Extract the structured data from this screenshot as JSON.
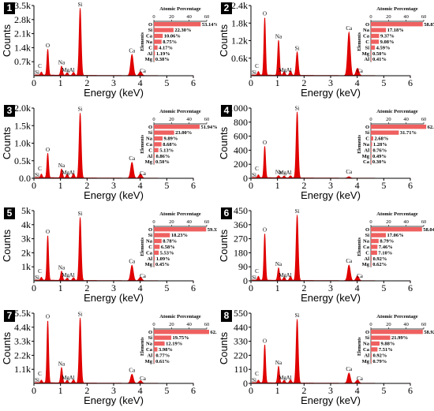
{
  "colors": {
    "spectrum": "#e00000",
    "bar": "#ef6060",
    "axis": "#000000"
  },
  "inset_title": "Atomic Percentage",
  "inset_ylabel": "Elements",
  "xlabel": "Energy (keV)",
  "ylabel": "Counts",
  "chart_data": [
    {
      "id": "1",
      "type": "line",
      "xlabel": "Energy (keV)",
      "ylabel": "Counts",
      "xlim": [
        0,
        6
      ],
      "ylim": [
        0,
        3500
      ],
      "xticks": [
        "0",
        "1",
        "2",
        "3",
        "4",
        "5",
        "6"
      ],
      "yticks": [
        "0.7k",
        "1.4k",
        "2.1k",
        "2.8k",
        "3.5k"
      ],
      "ytick_values": [
        700,
        1400,
        2100,
        2800,
        3500
      ],
      "peaks": [
        {
          "label": "C",
          "x": 0.28,
          "y": 150
        },
        {
          "label": "O",
          "x": 0.52,
          "y": 1300
        },
        {
          "label": "Na",
          "x": 1.04,
          "y": 450
        },
        {
          "label": "Mg",
          "x": 1.25,
          "y": 120
        },
        {
          "label": "Al",
          "x": 1.49,
          "y": 150
        },
        {
          "label": "Si",
          "x": 1.74,
          "y": 3350
        },
        {
          "label": "Ca",
          "x": 3.69,
          "y": 1050
        },
        {
          "label": "Ca",
          "x": 4.01,
          "y": 200
        }
      ],
      "extra_labels": [
        {
          "label": "Si",
          "x": 0.12
        }
      ],
      "inset": {
        "type": "bar",
        "title": "Atomic Percentage",
        "ylabel": "Elements",
        "xlim": [
          0,
          60
        ],
        "xticks": [
          "0",
          "20",
          "40",
          "60"
        ],
        "categories": [
          "O",
          "Si",
          "Ca",
          "Na",
          "C",
          "Al",
          "Mg"
        ],
        "values": [
          53.14,
          22.3,
          10.06,
          8.75,
          4.17,
          1.19,
          0.38
        ],
        "value_labels": [
          "53.14%",
          "22.30%",
          "10.06%",
          "8.75%",
          "4.17%",
          "1.19%",
          "0.38%"
        ]
      }
    },
    {
      "id": "2",
      "type": "line",
      "xlabel": "Energy (keV)",
      "ylabel": "Counts",
      "xlim": [
        0,
        6
      ],
      "ylim": [
        0,
        2400
      ],
      "xticks": [
        "0",
        "1",
        "2",
        "3",
        "4",
        "5",
        "6"
      ],
      "yticks": [
        "0.6k",
        "1.2k",
        "1.8k",
        "2.4k"
      ],
      "ytick_values": [
        600,
        1200,
        1800,
        2400
      ],
      "peaks": [
        {
          "label": "C",
          "x": 0.28,
          "y": 120
        },
        {
          "label": "O",
          "x": 0.52,
          "y": 1980
        },
        {
          "label": "Na",
          "x": 1.04,
          "y": 1200
        },
        {
          "label": "Mg",
          "x": 1.25,
          "y": 120
        },
        {
          "label": "Al",
          "x": 1.49,
          "y": 150
        },
        {
          "label": "Si",
          "x": 1.74,
          "y": 800
        },
        {
          "label": "Ca",
          "x": 3.69,
          "y": 1480
        },
        {
          "label": "Ca",
          "x": 4.01,
          "y": 250
        }
      ],
      "extra_labels": [
        {
          "label": "Si",
          "x": 0.12
        }
      ],
      "inset": {
        "type": "bar",
        "title": "Atomic Percentage",
        "ylabel": "Elements",
        "xlim": [
          0,
          60
        ],
        "xticks": [
          "0",
          "20",
          "40",
          "60"
        ],
        "categories": [
          "O",
          "Na",
          "Ca",
          "C",
          "Si",
          "Mg",
          "Al"
        ],
        "values": [
          58.87,
          17.18,
          9.37,
          9.08,
          4.59,
          0.5,
          0.41
        ],
        "value_labels": [
          "58.87%",
          "17.18%",
          "9.37%",
          "9.08%",
          "4.59%",
          "0.50%",
          "0.41%"
        ]
      }
    },
    {
      "id": "3",
      "type": "line",
      "xlabel": "Energy (keV)",
      "ylabel": "Counts",
      "xlim": [
        0,
        6
      ],
      "ylim": [
        0,
        2000
      ],
      "xticks": [
        "0",
        "1",
        "2",
        "3",
        "4",
        "5",
        "6"
      ],
      "yticks": [
        "0.0",
        "0.5k",
        "1.0k",
        "1.5k",
        "2.0k"
      ],
      "ytick_values": [
        0,
        500,
        1000,
        1500,
        2000
      ],
      "peaks": [
        {
          "label": "C",
          "x": 0.28,
          "y": 100
        },
        {
          "label": "O",
          "x": 0.52,
          "y": 700
        },
        {
          "label": "Na",
          "x": 1.04,
          "y": 250
        },
        {
          "label": "Mg",
          "x": 1.25,
          "y": 100
        },
        {
          "label": "Al",
          "x": 1.49,
          "y": 120
        },
        {
          "label": "Si",
          "x": 1.74,
          "y": 1850
        },
        {
          "label": "Ca",
          "x": 3.69,
          "y": 450
        },
        {
          "label": "Ca",
          "x": 4.01,
          "y": 120
        }
      ],
      "extra_labels": [
        {
          "label": "Si",
          "x": 0.12
        }
      ],
      "inset": {
        "type": "bar",
        "title": "Atomic Percentage",
        "ylabel": "Elements",
        "xlim": [
          0,
          60
        ],
        "xticks": [
          "0",
          "20",
          "40",
          "60"
        ],
        "categories": [
          "O",
          "Si",
          "Na",
          "Ca",
          "C",
          "Al",
          "Mg"
        ],
        "values": [
          51.94,
          23.0,
          9.89,
          8.68,
          5.13,
          0.86,
          0.5
        ],
        "value_labels": [
          "51.94%",
          "23.00%",
          "9.89%",
          "8.68%",
          "5.13%",
          "0.86%",
          "0.50%"
        ]
      }
    },
    {
      "id": "4",
      "type": "line",
      "xlabel": "Energy (keV)",
      "ylabel": "Counts",
      "xlim": [
        0,
        6
      ],
      "ylim": [
        0,
        1000
      ],
      "xticks": [
        "0",
        "1",
        "2",
        "3",
        "4",
        "5",
        "6"
      ],
      "yticks": [
        "0",
        "200",
        "400",
        "600",
        "800",
        "1000"
      ],
      "ytick_values": [
        0,
        200,
        400,
        600,
        800,
        1000
      ],
      "peaks": [
        {
          "label": "C",
          "x": 0.28,
          "y": 40
        },
        {
          "label": "O",
          "x": 0.52,
          "y": 450
        },
        {
          "label": "Na",
          "x": 1.04,
          "y": 30
        },
        {
          "label": "Mg",
          "x": 1.25,
          "y": 25
        },
        {
          "label": "Al",
          "x": 1.49,
          "y": 30
        },
        {
          "label": "Si",
          "x": 1.74,
          "y": 940
        },
        {
          "label": "Ca",
          "x": 3.69,
          "y": 20
        }
      ],
      "extra_labels": [
        {
          "label": "Si",
          "x": 0.12
        }
      ],
      "inset": {
        "type": "bar",
        "title": "Atomic Percentage",
        "ylabel": "Elements",
        "xlim": [
          0,
          60
        ],
        "xticks": [
          "0",
          "20",
          "40",
          "60"
        ],
        "categories": [
          "O",
          "Si",
          "C",
          "Na",
          "Al",
          "Mg",
          "Ca"
        ],
        "values": [
          62.78,
          31.71,
          2.68,
          1.28,
          0.76,
          0.49,
          0.3
        ],
        "value_labels": [
          "62.78%",
          "31.71%",
          "2.68%",
          "1.28%",
          "0.76%",
          "0.49%",
          "0.30%"
        ]
      }
    },
    {
      "id": "5",
      "type": "line",
      "xlabel": "Energy (keV)",
      "ylabel": "Counts",
      "xlim": [
        0,
        6
      ],
      "ylim": [
        0,
        5000
      ],
      "xticks": [
        "0",
        "1",
        "2",
        "3",
        "4",
        "5",
        "6"
      ],
      "yticks": [
        "1k",
        "2k",
        "3k",
        "4k",
        "5k"
      ],
      "ytick_values": [
        1000,
        2000,
        3000,
        4000,
        5000
      ],
      "peaks": [
        {
          "label": "C",
          "x": 0.28,
          "y": 200
        },
        {
          "label": "O",
          "x": 0.52,
          "y": 3200
        },
        {
          "label": "Na",
          "x": 1.04,
          "y": 650
        },
        {
          "label": "Mg",
          "x": 1.25,
          "y": 150
        },
        {
          "label": "Al",
          "x": 1.49,
          "y": 200
        },
        {
          "label": "Si",
          "x": 1.74,
          "y": 4500
        },
        {
          "label": "Ca",
          "x": 3.69,
          "y": 1100
        },
        {
          "label": "Ca",
          "x": 4.01,
          "y": 250
        }
      ],
      "extra_labels": [
        {
          "label": "Si",
          "x": 0.12
        }
      ],
      "inset": {
        "type": "bar",
        "title": "Atomic Percentage",
        "ylabel": "Elements",
        "xlim": [
          0,
          60
        ],
        "xticks": [
          "0",
          "20",
          "40",
          "60"
        ],
        "categories": [
          "O",
          "Si",
          "Na",
          "C",
          "Ca",
          "Al",
          "Mg"
        ],
        "values": [
          59.33,
          18.23,
          8.78,
          6.58,
          5.53,
          1.09,
          0.45
        ],
        "value_labels": [
          "59.33%",
          "18.23%",
          "8.78%",
          "6.58%",
          "5.53%",
          "1.09%",
          "0.45%"
        ]
      }
    },
    {
      "id": "6",
      "type": "line",
      "xlabel": "Energy (keV)",
      "ylabel": "Counts",
      "xlim": [
        0,
        6
      ],
      "ylim": [
        0,
        450
      ],
      "xticks": [
        "0",
        "1",
        "2",
        "3",
        "4",
        "5",
        "6"
      ],
      "yticks": [
        "0",
        "90",
        "180",
        "270",
        "360",
        "450"
      ],
      "ytick_values": [
        0,
        90,
        180,
        270,
        360,
        450
      ],
      "peaks": [
        {
          "label": "C",
          "x": 0.28,
          "y": 25
        },
        {
          "label": "O",
          "x": 0.52,
          "y": 300
        },
        {
          "label": "Na",
          "x": 1.04,
          "y": 80
        },
        {
          "label": "Mg",
          "x": 1.25,
          "y": 20
        },
        {
          "label": "Al",
          "x": 1.49,
          "y": 25
        },
        {
          "label": "Si",
          "x": 1.74,
          "y": 420
        },
        {
          "label": "Ca",
          "x": 3.69,
          "y": 100
        },
        {
          "label": "Ca",
          "x": 4.01,
          "y": 30
        }
      ],
      "extra_labels": [
        {
          "label": "Si",
          "x": 0.12
        }
      ],
      "inset": {
        "type": "bar",
        "title": "Atomic Percentage",
        "ylabel": "Elements",
        "xlim": [
          0,
          60
        ],
        "xticks": [
          "0",
          "20",
          "40",
          "60"
        ],
        "categories": [
          "O",
          "Si",
          "Na",
          "Ca",
          "C",
          "Al",
          "Mg"
        ],
        "values": [
          58.04,
          17.06,
          8.79,
          7.46,
          7.1,
          0.92,
          0.62
        ],
        "value_labels": [
          "58.04%",
          "17.06%",
          "8.79%",
          "7.46%",
          "7.10%",
          "0.92%",
          "0.62%"
        ]
      }
    },
    {
      "id": "7",
      "type": "line",
      "xlabel": "Energy (keV)",
      "ylabel": "Counts",
      "xlim": [
        0,
        6
      ],
      "ylim": [
        0,
        5500
      ],
      "xticks": [
        "0",
        "1",
        "2",
        "3",
        "4",
        "5",
        "6"
      ],
      "yticks": [
        "1.1k",
        "2.2k",
        "3.3k",
        "4.4k",
        "5.5k"
      ],
      "ytick_values": [
        1100,
        2200,
        3300,
        4400,
        5500
      ],
      "peaks": [
        {
          "label": "C",
          "x": 0.28,
          "y": 200
        },
        {
          "label": "O",
          "x": 0.52,
          "y": 4900
        },
        {
          "label": "Na",
          "x": 1.04,
          "y": 1200
        },
        {
          "label": "Mg",
          "x": 1.25,
          "y": 200
        },
        {
          "label": "Al",
          "x": 1.49,
          "y": 250
        },
        {
          "label": "Si",
          "x": 1.74,
          "y": 5100
        },
        {
          "label": "Ca",
          "x": 3.69,
          "y": 700
        },
        {
          "label": "Ca",
          "x": 4.01,
          "y": 200
        }
      ],
      "extra_labels": [
        {
          "label": "Si",
          "x": 0.12
        }
      ],
      "inset": {
        "type": "bar",
        "title": "Atomic Percentage",
        "ylabel": "Elements",
        "xlim": [
          0,
          60
        ],
        "xticks": [
          "0",
          "20",
          "40",
          "60"
        ],
        "categories": [
          "O",
          "Si",
          "Na",
          "Ca",
          "Al",
          "Mg"
        ],
        "values": [
          62.71,
          19.75,
          12.19,
          3.98,
          0.77,
          0.61
        ],
        "value_labels": [
          "62.71%",
          "19.75%",
          "12.19%",
          "3.98%",
          "0.77%",
          "0.61%"
        ]
      }
    },
    {
      "id": "8",
      "type": "line",
      "xlabel": "Energy (keV)",
      "ylabel": "Counts",
      "xlim": [
        0,
        6
      ],
      "ylim": [
        0,
        550
      ],
      "xticks": [
        "0",
        "1",
        "2",
        "3",
        "4",
        "5",
        "6"
      ],
      "yticks": [
        "0",
        "110",
        "220",
        "330",
        "440",
        "550"
      ],
      "ytick_values": [
        0,
        110,
        220,
        330,
        440,
        550
      ],
      "peaks": [
        {
          "label": "C",
          "x": 0.28,
          "y": 20
        },
        {
          "label": "O",
          "x": 0.52,
          "y": 300
        },
        {
          "label": "Na",
          "x": 1.04,
          "y": 130
        },
        {
          "label": "Mg",
          "x": 1.25,
          "y": 20
        },
        {
          "label": "Al",
          "x": 1.49,
          "y": 25
        },
        {
          "label": "Si",
          "x": 1.74,
          "y": 500
        },
        {
          "label": "Ca",
          "x": 3.69,
          "y": 80
        },
        {
          "label": "Ca",
          "x": 4.01,
          "y": 25
        }
      ],
      "extra_labels": [
        {
          "label": "Si",
          "x": 0.12
        }
      ],
      "inset": {
        "type": "bar",
        "title": "Atomic Percentage",
        "ylabel": "Elements",
        "xlim": [
          0,
          60
        ],
        "xticks": [
          "0",
          "20",
          "40",
          "60"
        ],
        "categories": [
          "O",
          "Si",
          "Na",
          "Ca",
          "Al",
          "Mg"
        ],
        "values": [
          58.92,
          21.99,
          9.88,
          7.51,
          0.92,
          0.79
        ],
        "value_labels": [
          "58.92%",
          "21.99%",
          "9.88%",
          "7.51%",
          "0.92%",
          "0.79%"
        ]
      }
    }
  ]
}
